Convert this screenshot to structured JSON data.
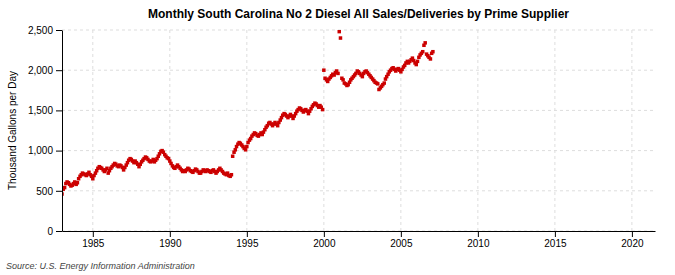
{
  "chart_data": {
    "type": "scatter",
    "title": "Monthly South Carolina No 2 Diesel All Sales/Deliveries by Prime Supplier",
    "ylabel": "Thousand Gallons per Day",
    "annotations": [
      "Source: U.S. Energy Information Administration"
    ],
    "color": "#cc0000",
    "marker": "square",
    "grid": true,
    "xlim": [
      1983.0,
      2021.5
    ],
    "ylim": [
      0,
      2500
    ],
    "xticks": [
      1985,
      1990,
      1995,
      2000,
      2005,
      2010,
      2015,
      2020
    ],
    "yticks": [
      0,
      500,
      {
        "value": 1000,
        "label": "1,000"
      },
      {
        "value": 1500,
        "label": "1,500"
      },
      {
        "value": 2000,
        "label": "2,000"
      },
      {
        "value": 2500,
        "label": "2,500"
      }
    ],
    "x": [
      1983.0,
      1983.08,
      1983.17,
      1983.25,
      1983.33,
      1983.42,
      1983.5,
      1983.58,
      1983.67,
      1983.75,
      1983.83,
      1983.92,
      1984.0,
      1984.08,
      1984.17,
      1984.25,
      1984.33,
      1984.42,
      1984.5,
      1984.58,
      1984.67,
      1984.75,
      1984.83,
      1984.92,
      1985.0,
      1985.08,
      1985.17,
      1985.25,
      1985.33,
      1985.42,
      1985.5,
      1985.58,
      1985.67,
      1985.75,
      1985.83,
      1985.92,
      1986.0,
      1986.08,
      1986.17,
      1986.25,
      1986.33,
      1986.42,
      1986.5,
      1986.58,
      1986.67,
      1986.75,
      1986.83,
      1986.92,
      1987.0,
      1987.08,
      1987.17,
      1987.25,
      1987.33,
      1987.42,
      1987.5,
      1987.58,
      1987.67,
      1987.75,
      1987.83,
      1987.92,
      1988.0,
      1988.08,
      1988.17,
      1988.25,
      1988.33,
      1988.42,
      1988.5,
      1988.58,
      1988.67,
      1988.75,
      1988.83,
      1988.92,
      1989.0,
      1989.08,
      1989.17,
      1989.25,
      1989.33,
      1989.42,
      1989.5,
      1989.58,
      1989.67,
      1989.75,
      1989.83,
      1989.92,
      1990.0,
      1990.08,
      1990.17,
      1990.25,
      1990.33,
      1990.42,
      1990.5,
      1990.58,
      1990.67,
      1990.75,
      1990.83,
      1990.92,
      1991.0,
      1991.08,
      1991.17,
      1991.25,
      1991.33,
      1991.42,
      1991.5,
      1991.58,
      1991.67,
      1991.75,
      1991.83,
      1991.92,
      1992.0,
      1992.08,
      1992.17,
      1992.25,
      1992.33,
      1992.42,
      1992.5,
      1992.58,
      1992.67,
      1992.75,
      1992.83,
      1992.92,
      1993.0,
      1993.08,
      1993.17,
      1993.25,
      1993.33,
      1993.42,
      1993.5,
      1993.58,
      1993.67,
      1993.75,
      1993.83,
      1993.92,
      1994.0,
      1994.08,
      1994.17,
      1994.25,
      1994.33,
      1994.42,
      1994.5,
      1994.58,
      1994.67,
      1994.75,
      1994.83,
      1994.92,
      1995.0,
      1995.08,
      1995.17,
      1995.25,
      1995.33,
      1995.42,
      1995.5,
      1995.58,
      1995.67,
      1995.75,
      1995.83,
      1995.92,
      1996.0,
      1996.08,
      1996.17,
      1996.25,
      1996.33,
      1996.42,
      1996.5,
      1996.58,
      1996.67,
      1996.75,
      1996.83,
      1996.92,
      1997.0,
      1997.08,
      1997.17,
      1997.25,
      1997.33,
      1997.42,
      1997.5,
      1997.58,
      1997.67,
      1997.75,
      1997.83,
      1997.92,
      1998.0,
      1998.08,
      1998.17,
      1998.25,
      1998.33,
      1998.42,
      1998.5,
      1998.58,
      1998.67,
      1998.75,
      1998.83,
      1998.92,
      1999.0,
      1999.08,
      1999.17,
      1999.25,
      1999.33,
      1999.42,
      1999.5,
      1999.58,
      1999.67,
      1999.75,
      1999.83,
      1999.92,
      2000.0,
      2000.08,
      2000.17,
      2000.25,
      2000.33,
      2000.42,
      2000.5,
      2000.58,
      2000.67,
      2000.75,
      2000.83,
      2000.92,
      2001.0,
      2001.08,
      2001.17,
      2001.25,
      2001.33,
      2001.42,
      2001.5,
      2001.58,
      2001.67,
      2001.75,
      2001.83,
      2001.92,
      2002.0,
      2002.08,
      2002.17,
      2002.25,
      2002.33,
      2002.42,
      2002.5,
      2002.58,
      2002.67,
      2002.75,
      2002.83,
      2002.92,
      2003.0,
      2003.08,
      2003.17,
      2003.25,
      2003.33,
      2003.42,
      2003.5,
      2003.58,
      2003.67,
      2003.75,
      2003.83,
      2003.92,
      2004.0,
      2004.08,
      2004.17,
      2004.25,
      2004.33,
      2004.42,
      2004.5,
      2004.58,
      2004.67,
      2004.75,
      2004.83,
      2004.92,
      2005.0,
      2005.08,
      2005.17,
      2005.25,
      2005.33,
      2005.42,
      2005.5,
      2005.58,
      2005.67,
      2005.75,
      2005.83,
      2005.92,
      2006.0,
      2006.08,
      2006.17,
      2006.25,
      2006.33,
      2006.42,
      2006.5,
      2006.58,
      2006.67,
      2006.75,
      2006.83,
      2006.92,
      2007.0,
      2007.08
    ],
    "values": [
      460,
      520,
      540,
      590,
      610,
      600,
      580,
      560,
      570,
      590,
      610,
      580,
      600,
      650,
      680,
      700,
      720,
      710,
      700,
      690,
      710,
      730,
      700,
      680,
      650,
      690,
      720,
      750,
      780,
      800,
      790,
      780,
      760,
      740,
      760,
      780,
      720,
      750,
      780,
      800,
      820,
      840,
      830,
      810,
      800,
      820,
      810,
      790,
      760,
      790,
      820,
      850,
      880,
      900,
      890,
      870,
      850,
      870,
      850,
      830,
      800,
      830,
      860,
      880,
      900,
      920,
      910,
      890,
      870,
      860,
      870,
      890,
      860,
      880,
      900,
      930,
      960,
      990,
      1000,
      980,
      950,
      930,
      910,
      900,
      870,
      840,
      810,
      790,
      780,
      800,
      820,
      800,
      780,
      760,
      740,
      750,
      740,
      760,
      780,
      770,
      750,
      740,
      730,
      750,
      770,
      760,
      740,
      720,
      720,
      740,
      760,
      750,
      740,
      760,
      750,
      740,
      730,
      750,
      760,
      740,
      720,
      740,
      760,
      780,
      760,
      740,
      720,
      710,
      700,
      720,
      690,
      680,
      700,
      930,
      980,
      1010,
      1050,
      1080,
      1100,
      1090,
      1070,
      1050,
      1030,
      1010,
      1050,
      1100,
      1130,
      1150,
      1180,
      1200,
      1220,
      1210,
      1190,
      1180,
      1200,
      1220,
      1200,
      1230,
      1260,
      1290,
      1310,
      1340,
      1350,
      1330,
      1310,
      1330,
      1350,
      1330,
      1310,
      1350,
      1380,
      1410,
      1440,
      1460,
      1450,
      1430,
      1410,
      1430,
      1450,
      1430,
      1400,
      1430,
      1460,
      1490,
      1510,
      1530,
      1520,
      1500,
      1480,
      1500,
      1510,
      1490,
      1460,
      1490,
      1520,
      1550,
      1570,
      1590,
      1580,
      1560,
      1540,
      1560,
      1540,
      1510,
      2000,
      1900,
      1880,
      1860,
      1890,
      1910,
      1930,
      1950,
      1940,
      1970,
      1990,
      1960,
      2480,
      2400,
      1900,
      1880,
      1840,
      1830,
      1810,
      1820,
      1850,
      1880,
      1900,
      1920,
      1940,
      1960,
      1990,
      1980,
      1960,
      1940,
      1920,
      1960,
      1980,
      1990,
      1970,
      1950,
      1930,
      1910,
      1890,
      1870,
      1850,
      1840,
      1830,
      1760,
      1780,
      1800,
      1820,
      1840,
      1890,
      1920,
      1950,
      1980,
      2000,
      2020,
      2030,
      2010,
      1990,
      2010,
      2020,
      2000,
      1980,
      2010,
      2040,
      2060,
      2090,
      2110,
      2090,
      2110,
      2130,
      2150,
      2120,
      2090,
      2070,
      2110,
      2160,
      2190,
      2210,
      2230,
      2310,
      2340,
      2200,
      2180,
      2160,
      2140,
      2210,
      2230
    ]
  }
}
